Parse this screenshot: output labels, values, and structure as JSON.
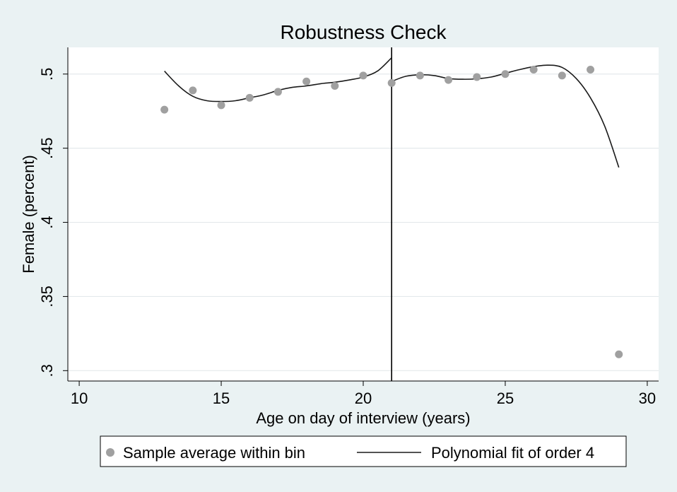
{
  "chart_data": {
    "type": "scatter",
    "title": "Robustness Check",
    "xlabel": "Age on day of interview (years)",
    "ylabel": "Female (percent)",
    "xlim": [
      9.6,
      30.4
    ],
    "ylim": [
      0.293,
      0.518
    ],
    "xticks": [
      10,
      15,
      20,
      25,
      30
    ],
    "xtick_labels": [
      "10",
      "15",
      "20",
      "25",
      "30"
    ],
    "yticks": [
      0.3,
      0.35,
      0.4,
      0.45,
      0.5
    ],
    "ytick_labels": [
      ".3",
      ".35",
      ".4",
      ".45",
      ".5"
    ],
    "grid": true,
    "cutoff_x": 21,
    "legend_position": "bottom",
    "series": [
      {
        "name": "Sample average within bin",
        "kind": "scatter",
        "color": "#a0a0a0",
        "points": [
          {
            "x": 13,
            "y": 0.476
          },
          {
            "x": 14,
            "y": 0.489
          },
          {
            "x": 15,
            "y": 0.479
          },
          {
            "x": 16,
            "y": 0.484
          },
          {
            "x": 17,
            "y": 0.488
          },
          {
            "x": 18,
            "y": 0.495
          },
          {
            "x": 19,
            "y": 0.492
          },
          {
            "x": 20,
            "y": 0.499
          },
          {
            "x": 21,
            "y": 0.494
          },
          {
            "x": 22,
            "y": 0.499
          },
          {
            "x": 23,
            "y": 0.496
          },
          {
            "x": 24,
            "y": 0.498
          },
          {
            "x": 25,
            "y": 0.5
          },
          {
            "x": 26,
            "y": 0.503
          },
          {
            "x": 27,
            "y": 0.499
          },
          {
            "x": 28,
            "y": 0.503
          },
          {
            "x": 29,
            "y": 0.311
          }
        ]
      },
      {
        "name": "Polynomial fit of order 4",
        "kind": "line",
        "color": "#1a1a1a",
        "segments": [
          [
            {
              "x": 13,
              "y": 0.502
            },
            {
              "x": 13.5,
              "y": 0.492
            },
            {
              "x": 14,
              "y": 0.485
            },
            {
              "x": 14.5,
              "y": 0.482
            },
            {
              "x": 15,
              "y": 0.4815
            },
            {
              "x": 15.5,
              "y": 0.482
            },
            {
              "x": 16,
              "y": 0.484
            },
            {
              "x": 16.5,
              "y": 0.486
            },
            {
              "x": 17,
              "y": 0.489
            },
            {
              "x": 17.5,
              "y": 0.491
            },
            {
              "x": 18,
              "y": 0.492
            },
            {
              "x": 18.5,
              "y": 0.4935
            },
            {
              "x": 19,
              "y": 0.4945
            },
            {
              "x": 19.5,
              "y": 0.496
            },
            {
              "x": 20,
              "y": 0.498
            },
            {
              "x": 20.5,
              "y": 0.502
            },
            {
              "x": 21,
              "y": 0.511
            }
          ],
          [
            {
              "x": 21,
              "y": 0.495
            },
            {
              "x": 21.5,
              "y": 0.4985
            },
            {
              "x": 22,
              "y": 0.4995
            },
            {
              "x": 22.5,
              "y": 0.499
            },
            {
              "x": 23,
              "y": 0.497
            },
            {
              "x": 23.5,
              "y": 0.4965
            },
            {
              "x": 24,
              "y": 0.4968
            },
            {
              "x": 24.5,
              "y": 0.498
            },
            {
              "x": 25,
              "y": 0.5005
            },
            {
              "x": 25.5,
              "y": 0.503
            },
            {
              "x": 26,
              "y": 0.505
            },
            {
              "x": 26.5,
              "y": 0.506
            },
            {
              "x": 27,
              "y": 0.5045
            },
            {
              "x": 27.5,
              "y": 0.497
            },
            {
              "x": 28,
              "y": 0.484
            },
            {
              "x": 28.5,
              "y": 0.465
            },
            {
              "x": 29,
              "y": 0.437
            }
          ]
        ]
      }
    ]
  }
}
